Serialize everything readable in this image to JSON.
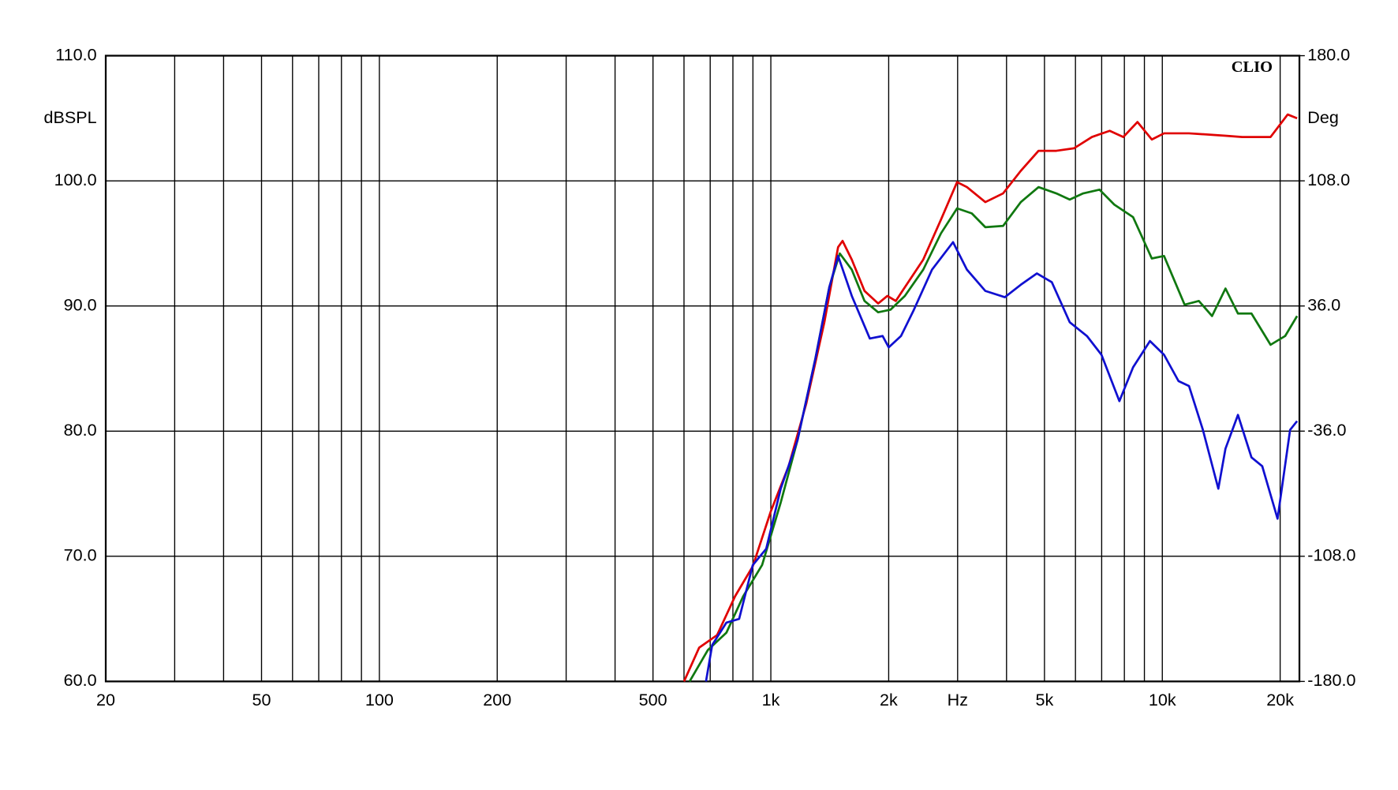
{
  "chart_data": {
    "type": "line",
    "brand": "CLIO",
    "ylabel": "dBSPL",
    "y2label": "Deg",
    "xscale": "log",
    "grid": true,
    "xlim": [
      20,
      22400
    ],
    "ylim": [
      60,
      110
    ],
    "y2lim": [
      -180,
      180
    ],
    "xticks": [
      {
        "value": 20,
        "label": "20"
      },
      {
        "value": 50,
        "label": "50"
      },
      {
        "value": 100,
        "label": "100"
      },
      {
        "value": 200,
        "label": "200"
      },
      {
        "value": 500,
        "label": "500"
      },
      {
        "value": 1000,
        "label": "1k"
      },
      {
        "value": 2000,
        "label": "2k"
      },
      {
        "value": 3000,
        "label": "Hz"
      },
      {
        "value": 5000,
        "label": "5k"
      },
      {
        "value": 10000,
        "label": "10k"
      },
      {
        "value": 20000,
        "label": "20k"
      }
    ],
    "xgrid": [
      30,
      40,
      60,
      70,
      80,
      90,
      300,
      400,
      600,
      700,
      800,
      900,
      4000,
      6000,
      7000,
      8000,
      9000
    ],
    "yticks": [
      {
        "value": 60,
        "label": "60.0"
      },
      {
        "value": 70,
        "label": "70.0"
      },
      {
        "value": 80,
        "label": "80.0"
      },
      {
        "value": 90,
        "label": "90.0"
      },
      {
        "value": 100,
        "label": "100.0"
      },
      {
        "value": 110,
        "label": "110.0"
      }
    ],
    "y2ticks": [
      {
        "value": -180,
        "label": "-180.0"
      },
      {
        "value": -108,
        "label": "-108.0"
      },
      {
        "value": -36,
        "label": "-36.0"
      },
      {
        "value": 36,
        "label": "36.0"
      },
      {
        "value": 108,
        "label": "108.0"
      },
      {
        "value": 180,
        "label": "180.0"
      }
    ],
    "series": [
      {
        "color": "#e00000",
        "x": [
          600,
          656,
          729,
          810,
          899,
          1000,
          1110,
          1232,
          1370,
          1485,
          1525,
          1610,
          1735,
          1880,
          1985,
          2085,
          2200,
          2450,
          2720,
          2990,
          3170,
          3530,
          3920,
          4350,
          4830,
          5360,
          5950,
          6610,
          7340,
          7950,
          8640,
          9400,
          10100,
          11700,
          14500,
          16000,
          18900,
          20900,
          22100
        ],
        "values": [
          60,
          62.7,
          63.7,
          66.8,
          69.2,
          73.6,
          77.2,
          82.2,
          88.7,
          94.7,
          95.2,
          93.7,
          91.2,
          90.2,
          90.8,
          90.4,
          91.5,
          93.7,
          96.9,
          99.9,
          99.5,
          98.3,
          99.0,
          100.8,
          102.4,
          102.4,
          102.6,
          103.5,
          104.0,
          103.5,
          104.7,
          103.3,
          103.8,
          103.8,
          103.6,
          103.5,
          103.5,
          105.3,
          105.0
        ]
      },
      {
        "color": "#107810",
        "x": [
          620,
          690,
          770,
          850,
          950,
          1060,
          1170,
          1300,
          1410,
          1500,
          1610,
          1735,
          1880,
          2020,
          2200,
          2450,
          2720,
          2990,
          3260,
          3530,
          3920,
          4350,
          4830,
          5360,
          5800,
          6280,
          6910,
          7540,
          8420,
          9400,
          10100,
          11400,
          12400,
          13400,
          14500,
          15600,
          16900,
          18900,
          20600,
          22100
        ],
        "values": [
          60,
          62.5,
          63.9,
          66.8,
          69.3,
          74.3,
          79.3,
          85.8,
          91.5,
          94.2,
          92.9,
          90.4,
          89.5,
          89.7,
          90.8,
          92.9,
          95.8,
          97.8,
          97.4,
          96.3,
          96.4,
          98.3,
          99.5,
          99.0,
          98.5,
          99.0,
          99.3,
          98.1,
          97.1,
          93.8,
          94.0,
          90.1,
          90.4,
          89.2,
          91.4,
          89.4,
          89.4,
          86.9,
          87.6,
          89.2
        ]
      },
      {
        "color": "#1010d0",
        "x": [
          683,
          708,
          770,
          830,
          899,
          973,
          1060,
          1170,
          1300,
          1410,
          1485,
          1610,
          1790,
          1930,
          2000,
          2150,
          2320,
          2580,
          2920,
          3170,
          3530,
          3960,
          4350,
          4780,
          5220,
          5800,
          6420,
          6990,
          7770,
          8420,
          9300,
          10100,
          11000,
          11700,
          12700,
          13900,
          14500,
          15600,
          16900,
          18000,
          19700,
          21200,
          22100
        ],
        "values": [
          60,
          62.9,
          64.7,
          65.0,
          69.3,
          70.6,
          75.4,
          79.3,
          85.8,
          91.5,
          94.0,
          90.8,
          87.4,
          87.6,
          86.7,
          87.6,
          89.7,
          92.9,
          95.1,
          92.9,
          91.2,
          90.7,
          91.7,
          92.6,
          91.9,
          88.7,
          87.6,
          86.1,
          82.4,
          85.1,
          87.2,
          86.1,
          84.0,
          83.6,
          80.1,
          75.4,
          78.6,
          81.3,
          77.9,
          77.2,
          73.0,
          80.1,
          80.8
        ]
      }
    ]
  }
}
